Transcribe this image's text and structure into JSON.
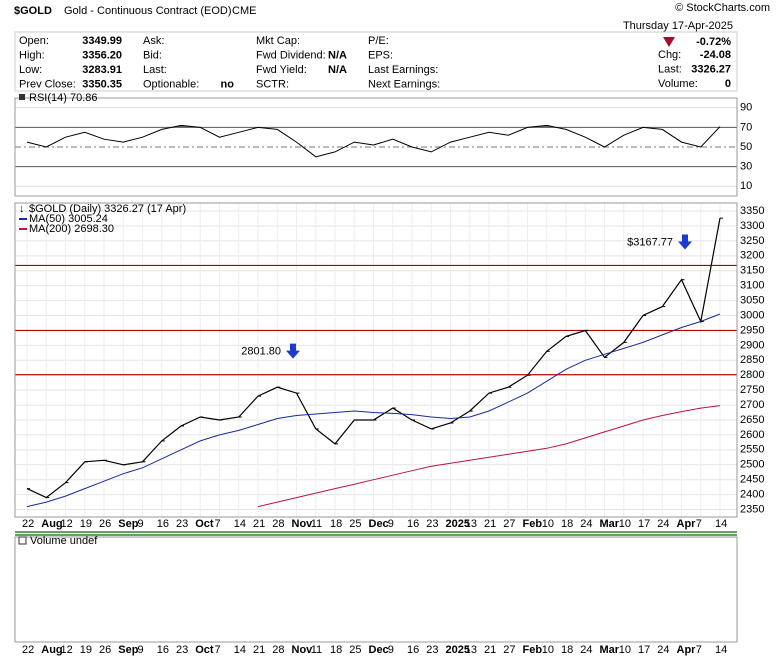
{
  "quote": {
    "symbol": "$GOLD",
    "name": "Gold - Continuous Contract (EOD)",
    "exchange": "CME",
    "copyright": "© StockCharts.com",
    "date": "Thursday  17-Apr-2025",
    "change_pct": "-0.72%",
    "columns": [
      [
        [
          "Open:",
          "3349.99"
        ],
        [
          "High:",
          "3356.20"
        ],
        [
          "Low:",
          "3283.91"
        ],
        [
          "Prev Close:",
          "3350.35"
        ]
      ],
      [
        [
          "Ask:"
        ],
        [
          "Bid:"
        ],
        [
          "Last:"
        ],
        [
          "Optionable:",
          "no"
        ]
      ],
      [
        [
          "Mkt Cap:"
        ],
        [
          "Fwd Dividend:",
          "N/A"
        ],
        [
          "Fwd Yield:",
          "N/A"
        ],
        [
          "SCTR:"
        ]
      ],
      [
        [
          "P/E:"
        ],
        [
          "EPS:"
        ],
        [
          "Last Earnings:"
        ],
        [
          "Next Earnings:"
        ]
      ],
      [
        [
          "Chg:",
          "-24.08"
        ],
        [
          "Last:",
          "3326.27"
        ],
        [
          "Volume:",
          "0"
        ]
      ]
    ]
  },
  "chart_data": [
    {
      "type": "line",
      "legend": "RSI(14) 70.86",
      "color": "#000000",
      "ylim": [
        0,
        100
      ],
      "yticks": [
        10,
        30,
        50,
        70,
        90
      ],
      "values": [
        55,
        50,
        60,
        65,
        58,
        55,
        60,
        68,
        72,
        70,
        60,
        65,
        70,
        68,
        55,
        40,
        45,
        55,
        52,
        58,
        50,
        45,
        55,
        60,
        65,
        62,
        70,
        72,
        68,
        60,
        50,
        62,
        70,
        68,
        55,
        50,
        70.86
      ]
    },
    {
      "type": "line",
      "ylim": [
        2325,
        3377
      ],
      "yticks": [
        2350,
        2400,
        2450,
        2500,
        2550,
        2600,
        2650,
        2700,
        2750,
        2800,
        2850,
        2900,
        2950,
        3000,
        3050,
        3100,
        3150,
        3200,
        3250,
        3300,
        3350
      ],
      "categories": [
        "22",
        "Aug",
        "12",
        "19",
        "26",
        "Sep",
        "9",
        "16",
        "23",
        "Oct",
        "7",
        "14",
        "21",
        "28",
        "Nov",
        "11",
        "18",
        "25",
        "Dec",
        "9",
        "16",
        "23",
        "2025",
        "13",
        "21",
        "27",
        "Feb",
        "10",
        "18",
        "24",
        "Mar",
        "10",
        "17",
        "24",
        "Apr",
        "7",
        "14"
      ],
      "series": [
        {
          "name": "$GOLD (Daily) 3326.27 (17 Apr)",
          "color": "#000000",
          "values": [
            2420,
            2390,
            2440,
            2510,
            2515,
            2500,
            2510,
            2580,
            2630,
            2660,
            2650,
            2660,
            2730,
            2760,
            2740,
            2620,
            2570,
            2650,
            2650,
            2690,
            2650,
            2620,
            2640,
            2680,
            2740,
            2760,
            2800,
            2880,
            2930,
            2950,
            2860,
            2910,
            3000,
            3030,
            3120,
            2980,
            3326.27
          ]
        },
        {
          "name": "MA(50) 3005.24",
          "color": "#1a2a9a",
          "values": [
            2360,
            2375,
            2395,
            2420,
            2445,
            2470,
            2490,
            2520,
            2550,
            2580,
            2600,
            2615,
            2635,
            2655,
            2665,
            2670,
            2675,
            2680,
            2675,
            2672,
            2668,
            2660,
            2655,
            2660,
            2680,
            2710,
            2740,
            2780,
            2820,
            2850,
            2870,
            2890,
            2910,
            2935,
            2960,
            2980,
            3005.24
          ]
        },
        {
          "name": "MA(200) 2698.30",
          "color": "#c0143c",
          "values": [
            null,
            null,
            null,
            null,
            null,
            null,
            null,
            null,
            null,
            null,
            null,
            null,
            2360,
            2375,
            2390,
            2405,
            2420,
            2435,
            2450,
            2465,
            2480,
            2495,
            2505,
            2515,
            2525,
            2535,
            2545,
            2555,
            2570,
            2590,
            2610,
            2630,
            2650,
            2665,
            2678,
            2690,
            2698.3
          ]
        }
      ],
      "hlines": [
        {
          "value": 3167.77,
          "color": "#b00000"
        },
        {
          "value": 2950,
          "color": "#b00000"
        },
        {
          "value": 2801.8,
          "color": "#b00000"
        }
      ],
      "annotations": [
        {
          "text": "$3167.77",
          "value": 3167.77,
          "color": "#1a2ad0"
        },
        {
          "text": "2801.80",
          "value": 2801.8,
          "color": "#1a2ad0"
        }
      ]
    },
    {
      "type": "bar",
      "legend": "Volume undef"
    }
  ]
}
